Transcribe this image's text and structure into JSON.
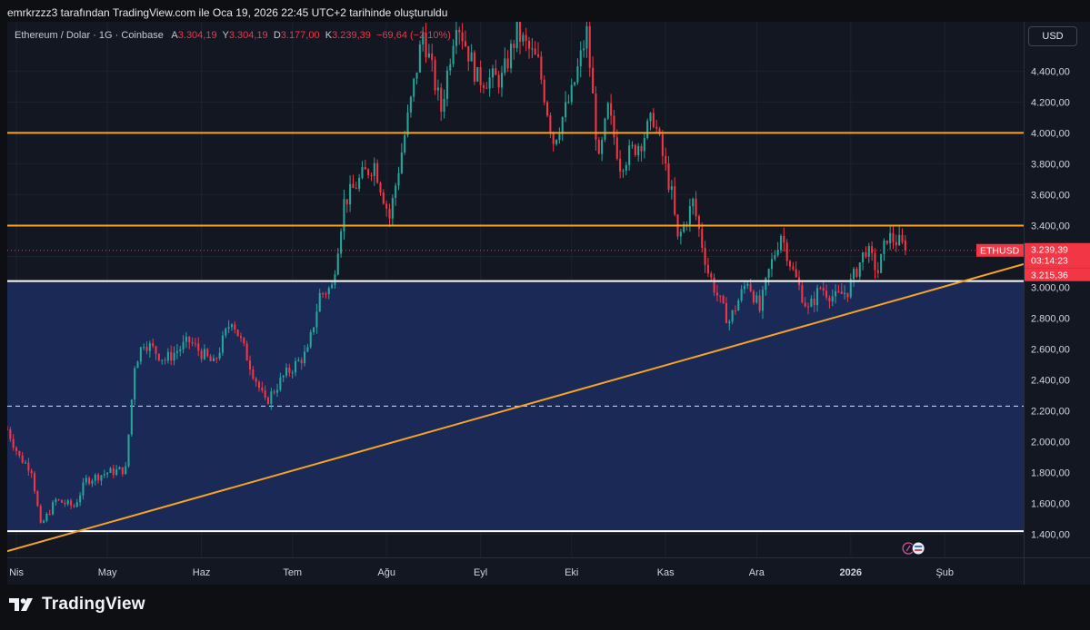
{
  "caption": "emrkrzzz3 tarafından TradingView.com ile Oca 19, 2026 22:45 UTC+2 tarihinde oluşturuldu",
  "legend": {
    "symbol": "Ethereum / Dolar · 1G · Coinbase",
    "open_label": "A",
    "open": "3.304,19",
    "high_label": "Y",
    "high": "3.304,19",
    "low_label": "D",
    "low": "3.177,00",
    "close_label": "K",
    "close": "3.239,39",
    "change": "−69,64 (−2,10%)"
  },
  "currency": "USD",
  "brand": "TradingView",
  "price_tags": {
    "symbol": "ETHUSD",
    "last_price": "3.239,39",
    "countdown": "03:14:23",
    "support_price": "3.215,36"
  },
  "colors": {
    "background": "#131722",
    "up": "#26a69a",
    "down": "#f23645",
    "horizontal_level": "#f7a325",
    "trendline": "#f7a325",
    "zone_fill": "#1c2b5c",
    "zone_border": "#ffffff"
  },
  "icons": [
    "tradingview-logo-icon",
    "event-flag-icon",
    "news-icon"
  ],
  "chart_data": {
    "type": "candlestick",
    "symbol": "ETHUSD",
    "timeframe": "1G",
    "ylim": [
      1250,
      4720
    ],
    "y_ticks": [
      1400,
      1600,
      1800,
      2000,
      2200,
      2400,
      2600,
      2800,
      3000,
      3200,
      3400,
      3600,
      3800,
      4000,
      4200,
      4400
    ],
    "y_tick_labels": [
      "1.400,00",
      "1.600,00",
      "1.800,00",
      "2.000,00",
      "2.200,00",
      "2.400,00",
      "2.600,00",
      "2.800,00",
      "3.000,00",
      "3.200,00",
      "3.400,00",
      "3.600,00",
      "3.800,00",
      "4.000,00",
      "4.200,00",
      "4.400,00"
    ],
    "x_range": [
      "2025-03-29",
      "2026-02-27"
    ],
    "x_ticks": [
      {
        "date": "2025-04-01",
        "label": "Nis",
        "bold": false
      },
      {
        "date": "2025-05-01",
        "label": "May",
        "bold": false
      },
      {
        "date": "2025-06-01",
        "label": "Haz",
        "bold": false
      },
      {
        "date": "2025-07-01",
        "label": "Tem",
        "bold": false
      },
      {
        "date": "2025-08-01",
        "label": "Ağu",
        "bold": false
      },
      {
        "date": "2025-09-01",
        "label": "Eyl",
        "bold": false
      },
      {
        "date": "2025-10-01",
        "label": "Eki",
        "bold": false
      },
      {
        "date": "2025-11-01",
        "label": "Kas",
        "bold": false
      },
      {
        "date": "2025-12-01",
        "label": "Ara",
        "bold": false
      },
      {
        "date": "2026-01-01",
        "label": "2026",
        "bold": true
      },
      {
        "date": "2026-02-01",
        "label": "Şub",
        "bold": false
      }
    ],
    "anchors": [
      [
        "2025-03-29",
        2080
      ],
      [
        "2025-04-02",
        1900
      ],
      [
        "2025-04-06",
        1820
      ],
      [
        "2025-04-09",
        1450
      ],
      [
        "2025-04-14",
        1620
      ],
      [
        "2025-04-20",
        1580
      ],
      [
        "2025-04-24",
        1750
      ],
      [
        "2025-05-01",
        1800
      ],
      [
        "2025-05-07",
        1820
      ],
      [
        "2025-05-10",
        2500
      ],
      [
        "2025-05-13",
        2650
      ],
      [
        "2025-05-20",
        2530
      ],
      [
        "2025-05-28",
        2650
      ],
      [
        "2025-06-05",
        2500
      ],
      [
        "2025-06-11",
        2800
      ],
      [
        "2025-06-17",
        2500
      ],
      [
        "2025-06-22",
        2250
      ],
      [
        "2025-06-28",
        2420
      ],
      [
        "2025-07-06",
        2580
      ],
      [
        "2025-07-10",
        2950
      ],
      [
        "2025-07-14",
        3000
      ],
      [
        "2025-07-18",
        3550
      ],
      [
        "2025-07-24",
        3720
      ],
      [
        "2025-07-28",
        3800
      ],
      [
        "2025-08-02",
        3450
      ],
      [
        "2025-08-09",
        4200
      ],
      [
        "2025-08-13",
        4650
      ],
      [
        "2025-08-19",
        4150
      ],
      [
        "2025-08-24",
        4750
      ],
      [
        "2025-08-31",
        4350
      ],
      [
        "2025-09-08",
        4350
      ],
      [
        "2025-09-13",
        4650
      ],
      [
        "2025-09-20",
        4450
      ],
      [
        "2025-09-25",
        3950
      ],
      [
        "2025-10-01",
        4250
      ],
      [
        "2025-10-06",
        4650
      ],
      [
        "2025-10-10",
        3800
      ],
      [
        "2025-10-13",
        4150
      ],
      [
        "2025-10-17",
        3800
      ],
      [
        "2025-10-24",
        3950
      ],
      [
        "2025-10-28",
        4100
      ],
      [
        "2025-11-03",
        3600
      ],
      [
        "2025-11-05",
        3300
      ],
      [
        "2025-11-10",
        3550
      ],
      [
        "2025-11-15",
        3100
      ],
      [
        "2025-11-20",
        2850
      ],
      [
        "2025-11-22",
        2780
      ],
      [
        "2025-11-28",
        3050
      ],
      [
        "2025-12-02",
        2850
      ],
      [
        "2025-12-05",
        3100
      ],
      [
        "2025-12-09",
        3350
      ],
      [
        "2025-12-13",
        3100
      ],
      [
        "2025-12-18",
        2850
      ],
      [
        "2025-12-22",
        3000
      ],
      [
        "2025-12-27",
        2930
      ],
      [
        "2025-12-31",
        2980
      ],
      [
        "2026-01-06",
        3250
      ],
      [
        "2026-01-10",
        3100
      ],
      [
        "2026-01-13",
        3330
      ],
      [
        "2026-01-17",
        3290
      ],
      [
        "2026-01-19",
        3239.39
      ]
    ],
    "horizontal_levels": [
      {
        "price": 4000,
        "color": "#f7a325"
      },
      {
        "price": 3400,
        "color": "#f7a325"
      },
      {
        "price": 3040,
        "color": "#ffffff"
      },
      {
        "price": 1420,
        "color": "#ffffff"
      }
    ],
    "dashed_level": 2230,
    "last_price_level": 3239.39,
    "zone": {
      "top": 3040,
      "bottom": 1420,
      "start": "2025-03-29"
    },
    "trendline": [
      [
        "2025-03-29",
        1290
      ],
      [
        "2026-02-27",
        3150
      ]
    ]
  }
}
